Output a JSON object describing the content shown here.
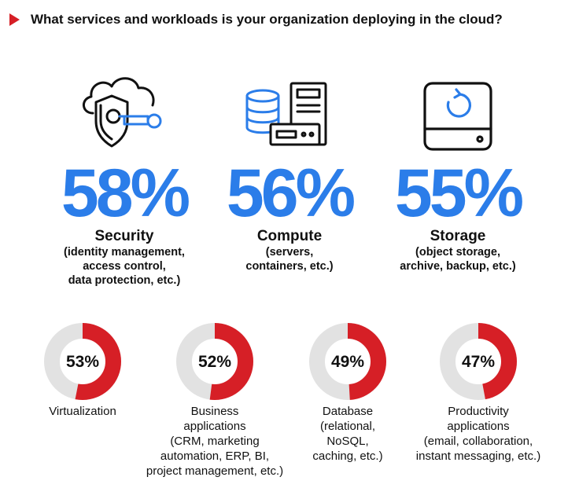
{
  "header": {
    "title": "What services and workloads is your organization deploying in the cloud?"
  },
  "colors": {
    "accent_red": "#d61f26",
    "accent_blue": "#2b7de9",
    "donut_track": "#e2e2e2"
  },
  "chart_data": [
    {
      "type": "bar",
      "categories": [
        "Security",
        "Compute",
        "Storage"
      ],
      "values": [
        58,
        56,
        55
      ],
      "value_labels": [
        "58%",
        "56%",
        "55%"
      ],
      "descriptions": [
        [
          "(identity management,",
          "access control,",
          "data protection, etc.)"
        ],
        [
          "(servers,",
          "containers, etc.)"
        ],
        [
          "(object storage,",
          "archive, backup, etc.)"
        ]
      ],
      "icons": [
        "shield-cloud-key-icon",
        "database-server-icon",
        "storage-drive-icon"
      ]
    },
    {
      "type": "pie",
      "categories": [
        "Virtualization",
        "Business applications",
        "Database",
        "Productivity applications"
      ],
      "values": [
        53,
        52,
        49,
        47
      ],
      "value_labels": [
        "53%",
        "52%",
        "49%",
        "47%"
      ],
      "label_lines": [
        [
          "Virtualization"
        ],
        [
          "Business",
          "applications",
          "(CRM, marketing",
          "automation, ERP, BI,",
          "project management, etc.)"
        ],
        [
          "Database",
          "(relational,",
          "NoSQL,",
          "caching, etc.)"
        ],
        [
          "Productivity",
          "applications",
          "(email, collaboration,",
          "instant messaging, etc.)"
        ]
      ]
    }
  ]
}
